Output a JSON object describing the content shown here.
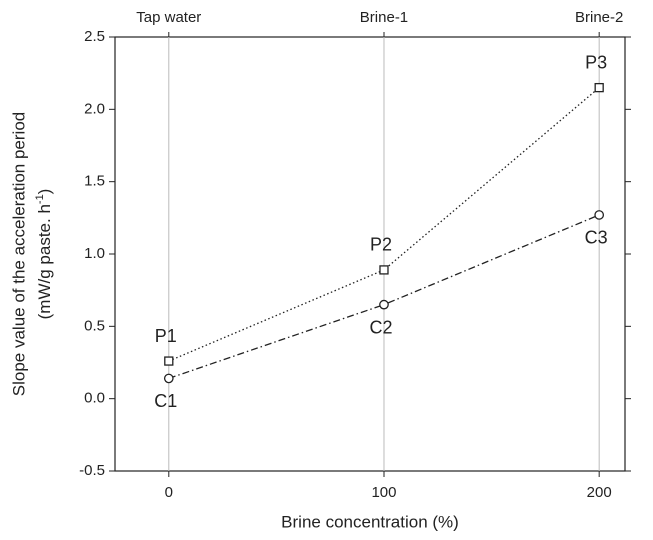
{
  "chart_data": {
    "type": "line",
    "ylabel": "Slope value of the acceleration period",
    "ylabel_units": [
      "(mW/g paste. h",
      "-1",
      ")"
    ],
    "xlabel": "Brine concentration (%)",
    "x": [
      0,
      100,
      200
    ],
    "xlim": [
      -25,
      212
    ],
    "xticks": [
      0,
      100,
      200
    ],
    "top_xticks": [
      {
        "value": 0,
        "label": "Tap water"
      },
      {
        "value": 100,
        "label": "Brine-1"
      },
      {
        "value": 200,
        "label": "Brine-2"
      }
    ],
    "ylim": [
      -0.5,
      2.5
    ],
    "yticks": [
      -0.5,
      {
        "value": 0,
        "label": "0.0"
      },
      0.5,
      {
        "value": 1,
        "label": "1.0"
      },
      1.5,
      {
        "value": 2,
        "label": "2.0"
      },
      2.5
    ],
    "grid": "x",
    "series": [
      {
        "color": "#222222",
        "marker": "square",
        "dash": "1.5,2.5",
        "label_position": "above",
        "values": [
          0.26,
          0.89,
          2.15
        ],
        "point_labels": [
          "P1",
          "P2",
          "P3"
        ]
      },
      {
        "color": "#222222",
        "marker": "circle",
        "dash": "7,3,1.5,3",
        "label_position": "below",
        "values": [
          0.14,
          0.65,
          1.27
        ],
        "point_labels": [
          "C1",
          "C2",
          "C3"
        ]
      }
    ]
  }
}
